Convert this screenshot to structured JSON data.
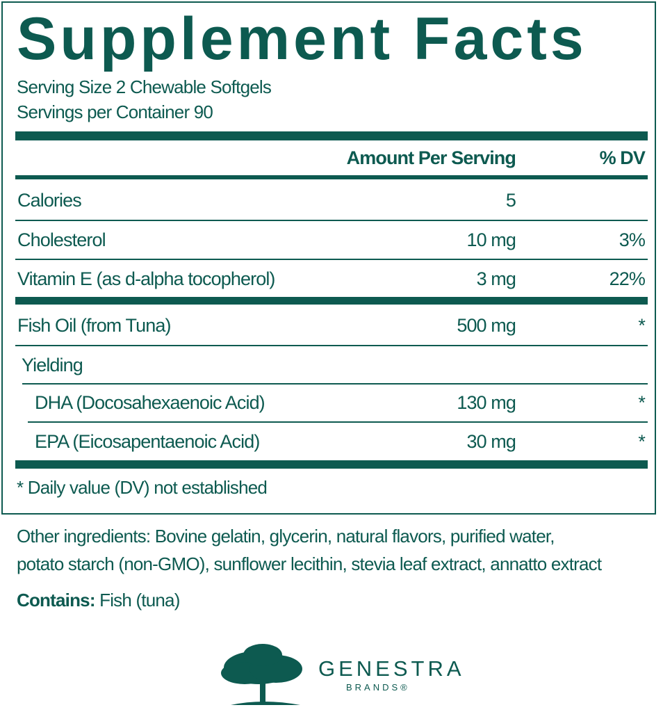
{
  "title": "Supplement Facts",
  "serving_size": "Serving Size 2 Chewable Softgels",
  "servings_per_container": "Servings per Container 90",
  "header": {
    "amount": "Amount Per Serving",
    "dv": "% DV"
  },
  "rows": [
    {
      "name": "Calories",
      "amount": "5",
      "dv": ""
    },
    {
      "name": "Cholesterol",
      "amount": "10 mg",
      "dv": "3%"
    },
    {
      "name": "Vitamin E (as d-alpha tocopherol)",
      "amount": "3 mg",
      "dv": "22%"
    },
    {
      "name": "Fish Oil (from Tuna)",
      "amount": "500 mg",
      "dv": "*"
    },
    {
      "name": "Yielding",
      "amount": "",
      "dv": ""
    },
    {
      "name": "DHA (Docosahexaenoic Acid)",
      "amount": "130 mg",
      "dv": "*"
    },
    {
      "name": "EPA (Eicosapentaenoic Acid)",
      "amount": "30 mg",
      "dv": "*"
    }
  ],
  "footnote": "* Daily value (DV) not established",
  "other_ingredients_1": "Other ingredients: Bovine gelatin, glycerin, natural flavors, purified water,",
  "other_ingredients_2": "potato starch (non-GMO), sunflower lecithin, stevia leaf extract, annatto extract",
  "contains_label": "Contains:",
  "contains_value": " Fish (tuna)",
  "brand": {
    "name": "GENESTRA",
    "sub": "BRANDS®"
  },
  "colors": {
    "primary": "#0d5a50"
  }
}
